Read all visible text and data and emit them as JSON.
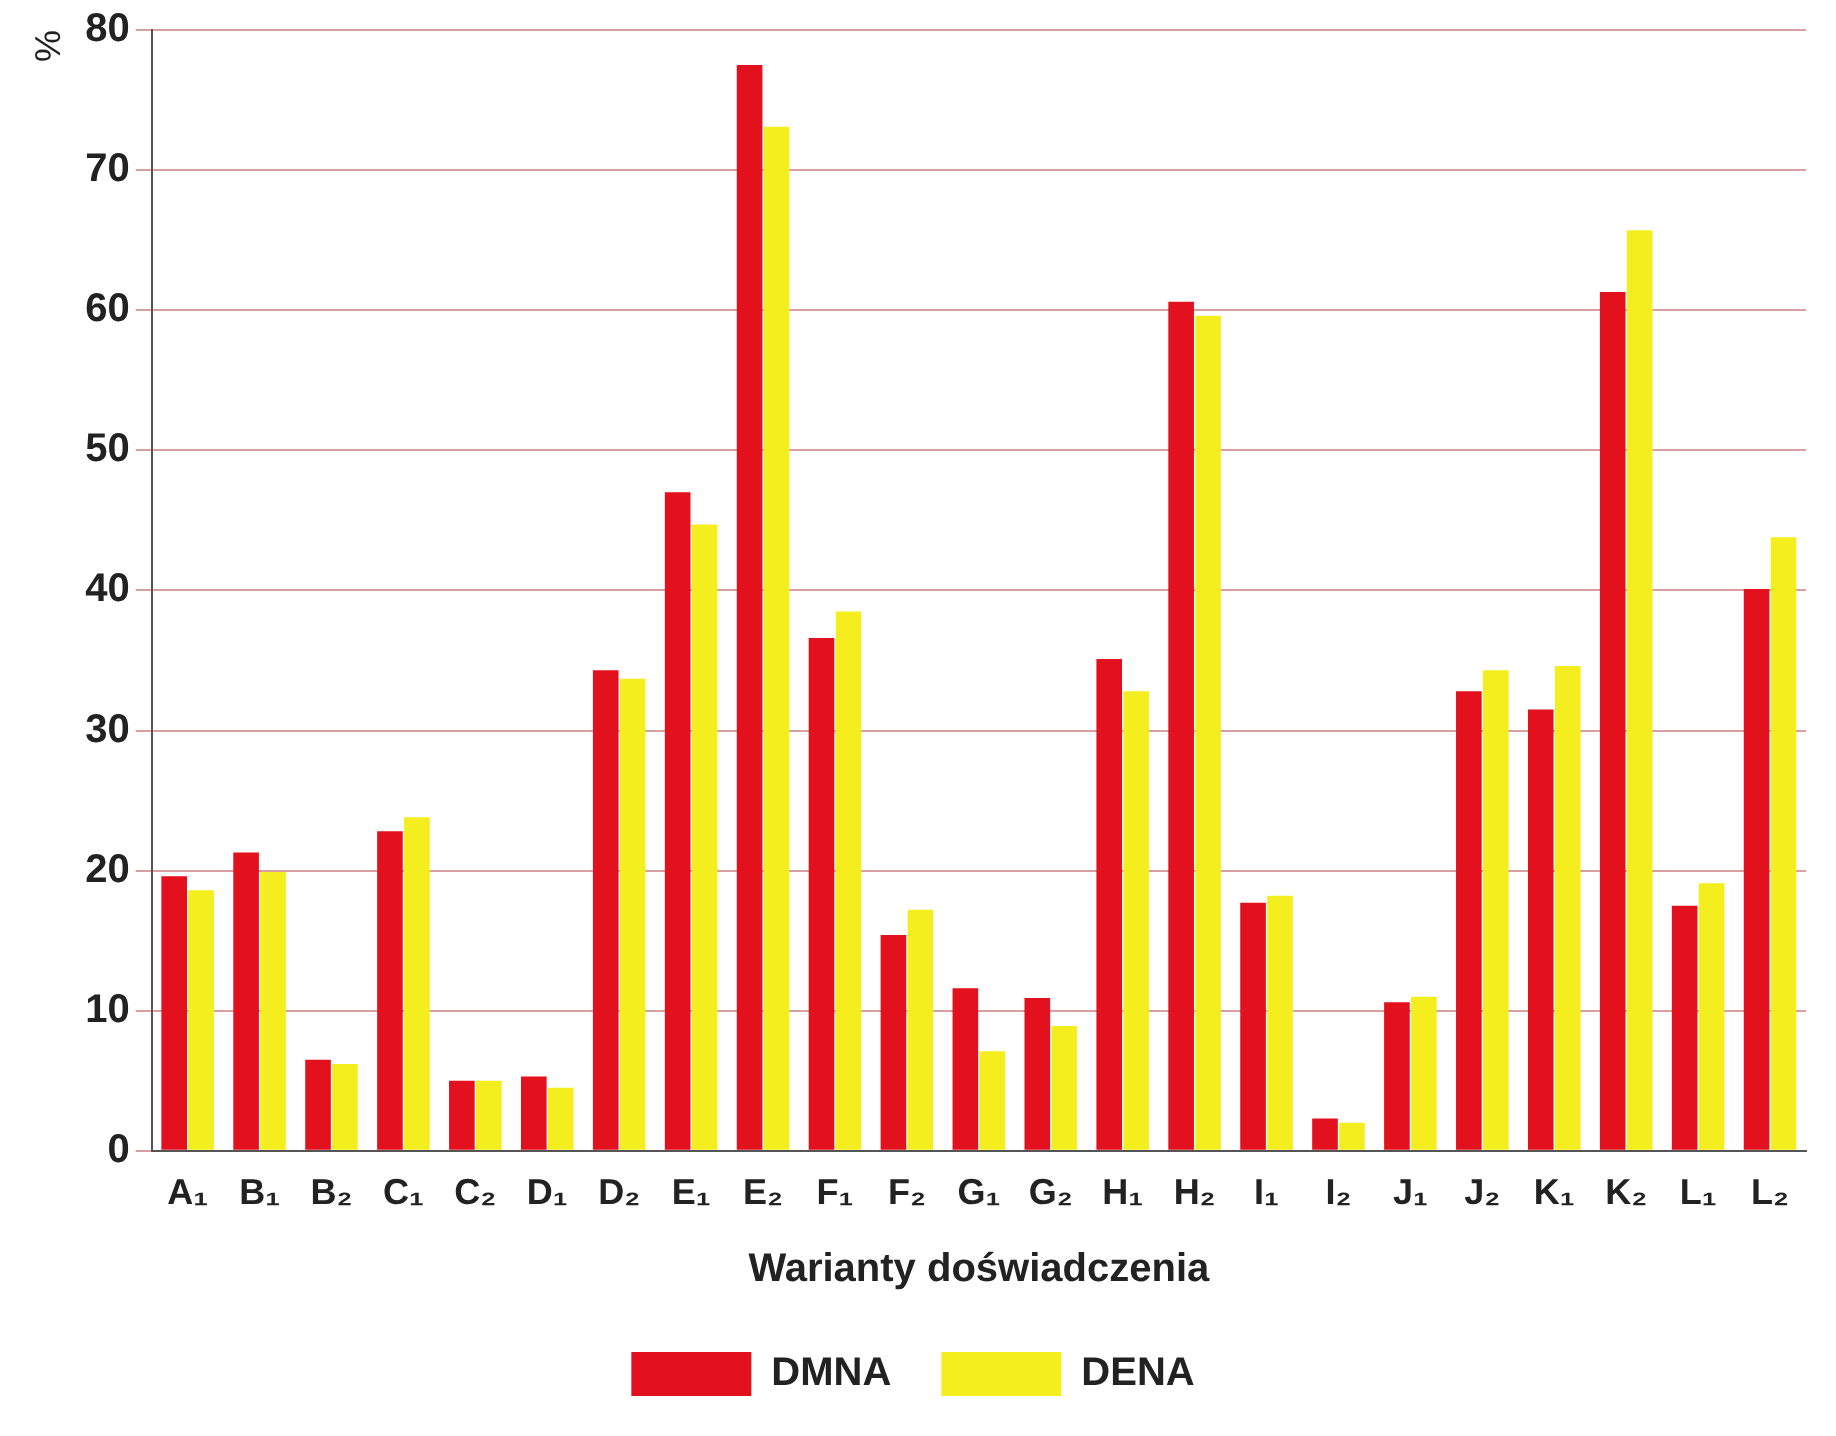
{
  "chart_data": {
    "type": "bar",
    "ylabel": "%",
    "xlabel": "Warianty doświadczenia",
    "categories": [
      "A₁",
      "B₁",
      "B₂",
      "C₁",
      "C₂",
      "D₁",
      "D₂",
      "E₁",
      "E₂",
      "F₁",
      "F₂",
      "G₁",
      "G₂",
      "H₁",
      "H₂",
      "I₁",
      "I₂",
      "J₁",
      "J₂",
      "K₁",
      "K₂",
      "L₁",
      "L₂"
    ],
    "series": [
      {
        "name": "DMNA",
        "color": "#e3101e",
        "values": [
          19.6,
          21.3,
          6.5,
          22.8,
          5.0,
          5.3,
          34.3,
          47.0,
          77.5,
          36.6,
          15.4,
          11.6,
          10.9,
          35.1,
          60.6,
          17.7,
          2.3,
          10.6,
          32.8,
          31.5,
          61.3,
          17.5,
          40.1
        ]
      },
      {
        "name": "DENA",
        "color": "#f5ee1e",
        "values": [
          18.6,
          19.9,
          6.2,
          23.8,
          5.0,
          4.5,
          33.7,
          44.7,
          73.1,
          38.5,
          17.2,
          7.1,
          8.9,
          32.8,
          59.6,
          18.2,
          2.0,
          11.0,
          34.3,
          34.6,
          65.7,
          19.1,
          43.8
        ]
      }
    ],
    "ylim": [
      0,
      80
    ],
    "yticks": [
      0,
      10,
      20,
      30,
      40,
      50,
      60,
      70,
      80
    ],
    "grid": "y",
    "legend": "bottom"
  }
}
